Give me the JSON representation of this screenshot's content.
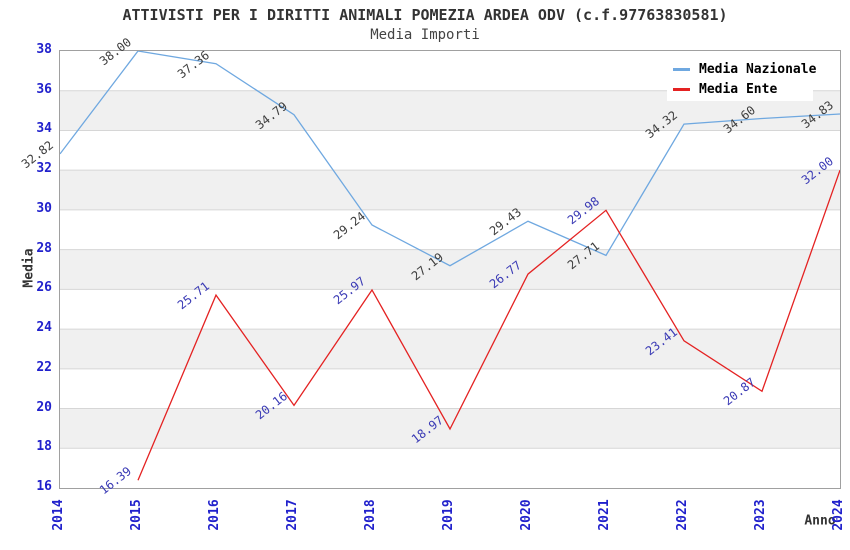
{
  "page": {
    "background": "#ffffff"
  },
  "chart_data": {
    "type": "line",
    "title": "ATTIVISTI PER I DIRITTI ANIMALI POMEZIA ARDEA ODV (c.f.97763830581)",
    "subtitle": "Media Importi",
    "xlabel": "Anno",
    "ylabel": "Media",
    "x": [
      2014,
      2015,
      2016,
      2017,
      2018,
      2019,
      2020,
      2021,
      2022,
      2023,
      2024
    ],
    "ylim": [
      16,
      38
    ],
    "ytick_step": 2,
    "yticks": [
      16,
      18,
      20,
      22,
      24,
      26,
      28,
      30,
      32,
      34,
      36,
      38
    ],
    "grid": "horizontal gridlines every 2 units with alternating light-gray bands",
    "legend_position": "top-right",
    "point_labels_decimals": 2,
    "colors": {
      "nazionale_line": "#6fa8e0",
      "ente_line": "#e42222",
      "tick_text": "#2121cc",
      "nazionale_label_text": "#3d3d3d",
      "ente_label_text": "#3a3ab5",
      "band_fill": "#f0f0f0",
      "grid_line": "#d6d6d6",
      "plot_border": "#a0a0a0"
    },
    "series": [
      {
        "name": "Media Nazionale",
        "color": "#6fa8e0",
        "label_color": "#3d3d3d",
        "values": [
          32.82,
          38.0,
          37.36,
          34.79,
          29.24,
          27.19,
          29.43,
          27.71,
          34.32,
          34.6,
          34.83
        ]
      },
      {
        "name": "Media Ente",
        "color": "#e42222",
        "label_color": "#3a3ab5",
        "values": [
          null,
          16.39,
          25.71,
          20.16,
          25.97,
          18.97,
          26.77,
          29.98,
          23.41,
          20.87,
          32.0
        ]
      }
    ]
  }
}
